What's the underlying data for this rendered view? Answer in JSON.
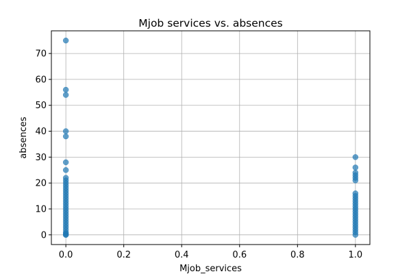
{
  "chart_data": {
    "type": "scatter",
    "title": "Mjob services vs. absences",
    "xlabel": "Mjob_services",
    "ylabel": "absences",
    "xlim": [
      -0.05,
      1.05
    ],
    "ylim": [
      -3.75,
      78.75
    ],
    "xticks": [
      0.0,
      0.2,
      0.4,
      0.6,
      0.8,
      1.0
    ],
    "xtick_labels": [
      "0.0",
      "0.2",
      "0.4",
      "0.6",
      "0.8",
      "1.0"
    ],
    "yticks": [
      0,
      10,
      20,
      30,
      40,
      50,
      60,
      70
    ],
    "ytick_labels": [
      "0",
      "10",
      "20",
      "30",
      "40",
      "50",
      "60",
      "70"
    ],
    "grid": true,
    "marker_color": "#1f77b4",
    "series": [
      {
        "x": [
          0,
          0,
          0,
          0,
          0,
          0,
          0,
          0,
          0,
          0,
          0,
          0,
          0,
          0,
          0,
          0,
          0,
          0,
          0,
          0,
          0,
          0,
          0,
          0,
          0,
          0,
          0,
          0,
          0,
          0,
          0,
          0
        ],
        "y": [
          75,
          56,
          54,
          40,
          38,
          28,
          25,
          22,
          21,
          20,
          19,
          18,
          17,
          16,
          15,
          14,
          13,
          12,
          11,
          10,
          9,
          8,
          7,
          6,
          5,
          4,
          3,
          2,
          1,
          0.5,
          0,
          0
        ]
      },
      {
        "x": [
          1,
          1,
          1,
          1,
          1,
          1,
          1,
          1,
          1,
          1,
          1,
          1,
          1,
          1,
          1,
          1,
          1,
          1,
          1,
          1,
          1,
          1,
          1
        ],
        "y": [
          30,
          26,
          24,
          23,
          22,
          21,
          16,
          15,
          14,
          13,
          12,
          11,
          10,
          9,
          8,
          7,
          6,
          5,
          4,
          3,
          2,
          1,
          0
        ]
      }
    ]
  }
}
